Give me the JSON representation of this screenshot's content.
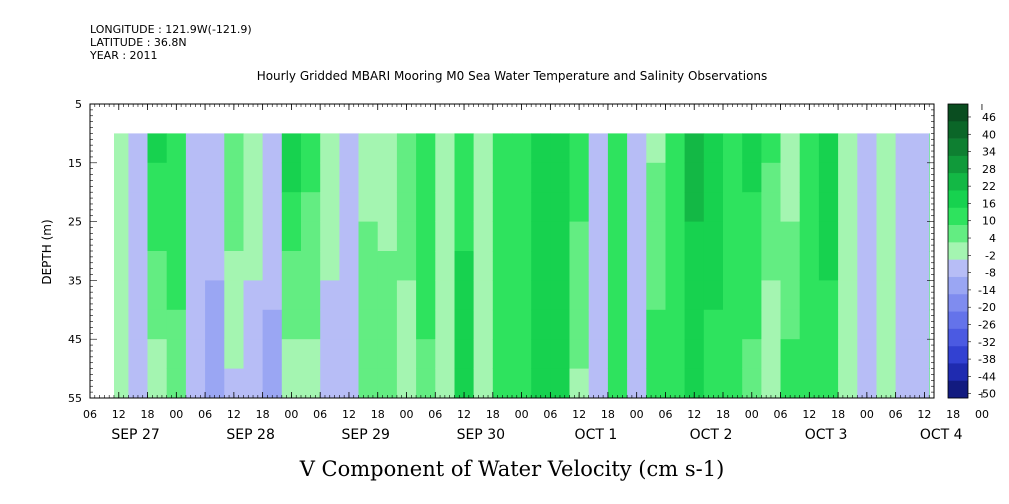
{
  "header": {
    "longitude": "LONGITUDE : 121.9W(-121.9)",
    "latitude": "LATITUDE : 36.8N",
    "year": "YEAR : 2011"
  },
  "chart_data": {
    "type": "heatmap",
    "title": "Hourly Gridded MBARI Mooring M0 Sea Water Temperature and Salinity Observations",
    "xlabel": "V Component of Water Velocity (cm s-1)",
    "ylabel": "DEPTH (m)",
    "ylim": [
      5,
      55
    ],
    "y_inverted": true,
    "y_ticks": [
      5,
      15,
      25,
      35,
      45,
      55
    ],
    "data_depth_range": [
      10,
      55
    ],
    "x_hour_labels": [
      "06",
      "12",
      "18",
      "00",
      "06",
      "12",
      "18",
      "00",
      "06",
      "12",
      "18",
      "00",
      "06",
      "12",
      "18",
      "00",
      "06",
      "12",
      "18",
      "00",
      "06",
      "12",
      "18",
      "00",
      "06",
      "12",
      "18",
      "00",
      "06",
      "12",
      "18",
      "00"
    ],
    "x_day_labels": [
      "SEP 27",
      "SEP 28",
      "SEP 29",
      "SEP 30",
      "OCT  1",
      "OCT  2",
      "OCT  3",
      "OCT  4"
    ],
    "time_range_hours": [
      6,
      182
    ],
    "data_start_hour": 11,
    "colorbar": {
      "labels": [
        "46",
        "40",
        "34",
        "28",
        "22",
        "16",
        "10",
        "4",
        "-2",
        "-8",
        "-14",
        "-20",
        "-26",
        "-32",
        "-38",
        "-44",
        "-50"
      ],
      "colors": [
        "#0a4d20",
        "#0b6628",
        "#0e7f31",
        "#109a3a",
        "#13b845",
        "#17d24f",
        "#2ee35e",
        "#63ed82",
        "#a4f5b1",
        "#b7bdf6",
        "#9aa6f3",
        "#7f8cef",
        "#6473ea",
        "#4b5ae2",
        "#3241d2",
        "#1f2bb0",
        "#121b80"
      ]
    },
    "column_pattern": [
      {
        "hour": 11,
        "surface": -6,
        "bottom": -8
      },
      {
        "hour": 14,
        "surface": -10,
        "bottom": -14
      },
      {
        "hour": 18,
        "surface": 12,
        "bottom": -6
      },
      {
        "hour": 22,
        "surface": 8,
        "bottom": 2
      },
      {
        "hour": 26,
        "surface": -8,
        "bottom": -14
      },
      {
        "hour": 30,
        "surface": -12,
        "bottom": -16
      },
      {
        "hour": 34,
        "surface": 4,
        "bottom": -10
      },
      {
        "hour": 38,
        "surface": -4,
        "bottom": -12
      },
      {
        "hour": 42,
        "surface": -10,
        "bottom": -16
      },
      {
        "hour": 46,
        "surface": 14,
        "bottom": -8
      },
      {
        "hour": 50,
        "surface": 6,
        "bottom": -4
      },
      {
        "hour": 54,
        "surface": -6,
        "bottom": -10
      },
      {
        "hour": 58,
        "surface": -10,
        "bottom": -8
      },
      {
        "hour": 62,
        "surface": -4,
        "bottom": 2
      },
      {
        "hour": 66,
        "surface": -8,
        "bottom": 4
      },
      {
        "hour": 70,
        "surface": 2,
        "bottom": -6
      },
      {
        "hour": 74,
        "surface": 10,
        "bottom": 2
      },
      {
        "hour": 78,
        "surface": -6,
        "bottom": -8
      },
      {
        "hour": 82,
        "surface": 8,
        "bottom": 12
      },
      {
        "hour": 86,
        "surface": -6,
        "bottom": -2
      },
      {
        "hour": 90,
        "surface": 10,
        "bottom": 8
      },
      {
        "hour": 94,
        "surface": 6,
        "bottom": 4
      },
      {
        "hour": 98,
        "surface": 14,
        "bottom": 12
      },
      {
        "hour": 102,
        "surface": 16,
        "bottom": 14
      },
      {
        "hour": 106,
        "surface": 8,
        "bottom": -4
      },
      {
        "hour": 110,
        "surface": -8,
        "bottom": -10
      },
      {
        "hour": 114,
        "surface": 4,
        "bottom": 6
      },
      {
        "hour": 118,
        "surface": -10,
        "bottom": -8
      },
      {
        "hour": 122,
        "surface": -4,
        "bottom": 8
      },
      {
        "hour": 126,
        "surface": 6,
        "bottom": 10
      },
      {
        "hour": 130,
        "surface": 18,
        "bottom": 12
      },
      {
        "hour": 134,
        "surface": 14,
        "bottom": 8
      },
      {
        "hour": 138,
        "surface": 10,
        "bottom": 6
      },
      {
        "hour": 142,
        "surface": 12,
        "bottom": 2
      },
      {
        "hour": 146,
        "surface": 6,
        "bottom": -8
      },
      {
        "hour": 150,
        "surface": -6,
        "bottom": 6
      },
      {
        "hour": 154,
        "surface": 4,
        "bottom": 10
      },
      {
        "hour": 158,
        "surface": 12,
        "bottom": 8
      },
      {
        "hour": 162,
        "surface": -4,
        "bottom": -8
      },
      {
        "hour": 166,
        "surface": -8,
        "bottom": -12
      },
      {
        "hour": 170,
        "surface": -6,
        "bottom": -4
      },
      {
        "hour": 174,
        "surface": -10,
        "bottom": -14
      },
      {
        "hour": 178,
        "surface": -8,
        "bottom": -10
      },
      {
        "hour": 181,
        "surface": 6,
        "bottom": 8
      }
    ]
  }
}
